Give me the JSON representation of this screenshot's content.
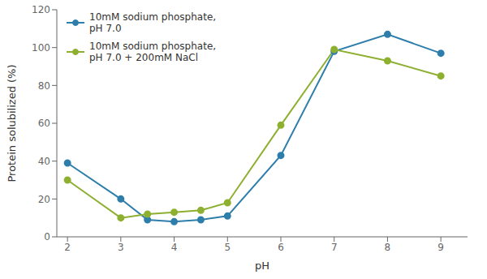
{
  "chart_data": {
    "type": "line",
    "x": [
      2,
      3,
      3.5,
      4,
      4.5,
      5,
      6,
      7,
      8,
      9
    ],
    "series": [
      {
        "name": "10mM sodium phosphate,\npH 7.0",
        "color": "#2e7eab",
        "marker": "circle",
        "values": [
          39,
          20,
          9,
          8,
          9,
          11,
          43,
          98,
          107,
          97
        ]
      },
      {
        "name": "10mM sodium phosphate,\npH 7.0 + 200mM NaCl",
        "color": "#8db030",
        "marker": "circle",
        "values": [
          30,
          10,
          12,
          13,
          14,
          18,
          59,
          99,
          93,
          85
        ]
      }
    ],
    "xlabel": "pH",
    "ylabel": "Protein solubilized (%)",
    "xlim": [
      1.8,
      9.5
    ],
    "ylim": [
      0,
      120
    ],
    "xticks": [
      2,
      3,
      4,
      5,
      6,
      7,
      8,
      9
    ],
    "yticks": [
      0,
      20,
      40,
      60,
      80,
      100,
      120
    ],
    "legend": "upper left",
    "grid": false
  }
}
